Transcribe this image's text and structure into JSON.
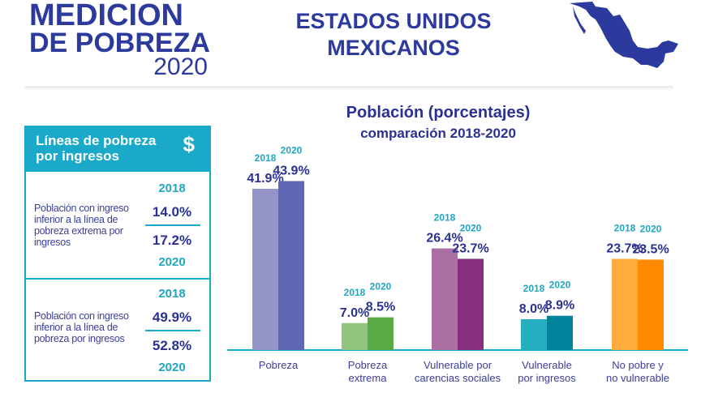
{
  "header": {
    "logo_line1": "MEDICION",
    "logo_line2": "DE POBREZA",
    "logo_line3": "2020",
    "country_line1": "ESTADOS UNIDOS",
    "country_line2": "MEXICANOS",
    "map_icon": "mexico-map-icon"
  },
  "panel": {
    "title_line1": "Líneas de pobreza",
    "title_line2": "por ingresos",
    "icon": "$",
    "colors": {
      "accent": "#1aa9c8",
      "text": "#2b3190"
    },
    "items": [
      {
        "description": "Población con ingreso inferior a la línea de pobreza extrema por ingresos",
        "year_a": "2018",
        "value_a": "14.0%",
        "value_b": "17.2%",
        "year_b": "2020"
      },
      {
        "description": "Población con ingreso inferior a la línea de pobreza por ingresos",
        "year_a": "2018",
        "value_a": "49.9%",
        "value_b": "52.8%",
        "year_b": "2020"
      }
    ]
  },
  "chart_data": {
    "type": "bar",
    "title": "Población (porcentajes)",
    "subtitle": "comparación 2018-2020",
    "categories": [
      "Pobreza",
      "Pobreza extrema",
      "Vulnerable por carencias sociales",
      "Vulnerable por ingresos",
      "No pobre y no vulnerable"
    ],
    "category_lines": [
      [
        "Pobreza"
      ],
      [
        "Pobreza",
        "extrema"
      ],
      [
        "Vulnerable por",
        "carencias sociales"
      ],
      [
        "Vulnerable",
        "por ingresos"
      ],
      [
        "No pobre y",
        "no vulnerable"
      ]
    ],
    "series": [
      {
        "name": "2018",
        "values": [
          41.9,
          7.0,
          26.4,
          8.0,
          23.7
        ],
        "labels": [
          "41.9%",
          "7.0%",
          "26.4%",
          "8.0%",
          "23.7%"
        ]
      },
      {
        "name": "2020",
        "values": [
          43.9,
          8.5,
          23.7,
          8.9,
          23.5
        ],
        "labels": [
          "43.9%",
          "8.5%",
          "23.7%",
          "8.9%",
          "23.5%"
        ]
      }
    ],
    "colors": [
      [
        "#9494c8",
        "#6166b5"
      ],
      [
        "#93c47d",
        "#5aab45"
      ],
      [
        "#ab6fa2",
        "#862e7f"
      ],
      [
        "#25aec0",
        "#00839a"
      ],
      [
        "#ffac3f",
        "#ff8a00"
      ]
    ],
    "label_color": "#2b3190",
    "year_color": "#20a6c3",
    "baseline_color": "#1aa9c8",
    "ylim": [
      0,
      45
    ],
    "grid": false,
    "legend": "none"
  }
}
